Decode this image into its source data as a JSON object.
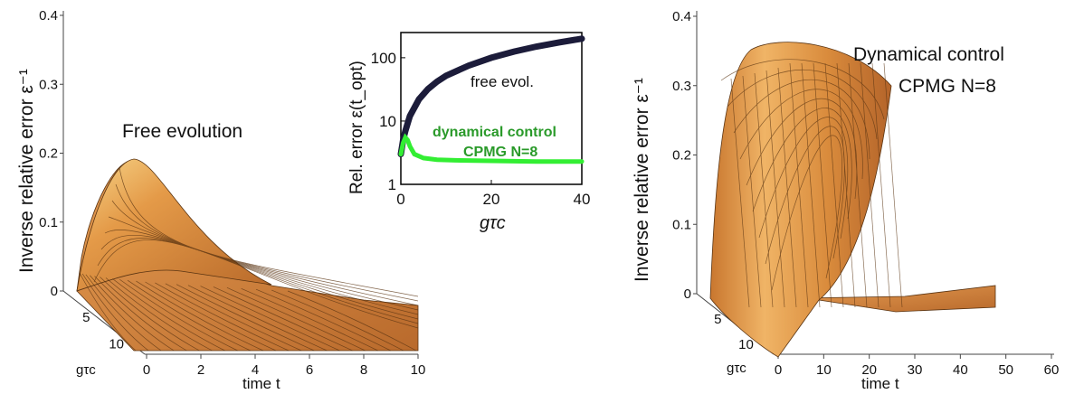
{
  "chart_data": [
    {
      "type": "surface3d",
      "title": "Free evolution",
      "zlabel": "Inverse relative error ε⁻¹",
      "xlabel": "time t",
      "ylabel": "gτc",
      "zticks": [
        "0",
        "0.1",
        "0.2",
        "0.3",
        "0.4"
      ],
      "zlim": [
        0,
        0.4
      ],
      "xticks": [
        "0",
        "2",
        "4",
        "6",
        "8",
        "10"
      ],
      "xlim": [
        0,
        10
      ],
      "yticks": [
        "5",
        "10"
      ],
      "ylim": [
        0,
        12
      ],
      "peak": {
        "t": 1.2,
        "g_tau_c": 0,
        "value": 0.19
      },
      "color": "#d98a3a"
    },
    {
      "type": "line",
      "inset": true,
      "xlabel": "gτc",
      "ylabel": "Rel. error ε(t_opt)",
      "yscale": "log",
      "xlim": [
        0,
        40
      ],
      "ylim": [
        1,
        250
      ],
      "xticks": [
        "0",
        "20",
        "40"
      ],
      "yticks": [
        "1",
        "10",
        "100"
      ],
      "annotations": [
        "free evol.",
        "dynamical control",
        "CPMG N=8"
      ],
      "series": [
        {
          "name": "free evol.",
          "color": "#1c1c3a",
          "x": [
            0,
            0.5,
            1,
            2,
            4,
            6,
            8,
            10,
            15,
            20,
            25,
            30,
            35,
            40
          ],
          "y": [
            3,
            5,
            7,
            12,
            22,
            32,
            42,
            52,
            75,
            100,
            125,
            150,
            175,
            200
          ]
        },
        {
          "name": "dynamical control CPMG N=8",
          "color": "#33ee33",
          "x": [
            0,
            0.5,
            1,
            1.5,
            2,
            3,
            5,
            8,
            12,
            20,
            30,
            40
          ],
          "y": [
            3,
            4.5,
            5.5,
            5,
            4,
            3,
            2.6,
            2.45,
            2.4,
            2.35,
            2.3,
            2.3
          ]
        }
      ]
    },
    {
      "type": "surface3d",
      "title": "Dynamical control",
      "subtitle": "CPMG N=8",
      "zlabel": "Inverse relative error ε⁻¹",
      "xlabel": "time t",
      "ylabel": "gτc",
      "zticks": [
        "0",
        "0.1",
        "0.2",
        "0.3",
        "0.4"
      ],
      "zlim": [
        0,
        0.4
      ],
      "xticks": [
        "0",
        "10",
        "20",
        "30",
        "40",
        "50",
        "60"
      ],
      "xlim": [
        0,
        60
      ],
      "yticks": [
        "5",
        "10"
      ],
      "ylim": [
        0,
        12
      ],
      "peak": {
        "t": 18,
        "value": 0.39
      },
      "color": "#d98a3a"
    }
  ]
}
